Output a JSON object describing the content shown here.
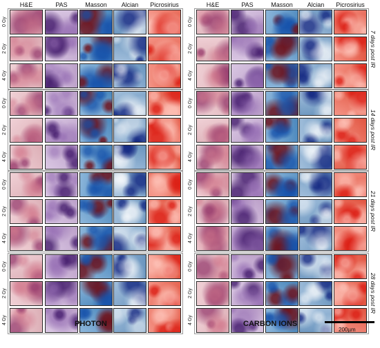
{
  "stains": [
    "H&E",
    "PAS",
    "Masson",
    "Alcian",
    "Picrosirius"
  ],
  "doses": [
    "0 Gy",
    "2 Gy",
    "4 Gy"
  ],
  "timepoints": [
    "7 days post IR",
    "14 days post IR",
    "21 days post IR",
    "28 days post IR"
  ],
  "groups": [
    "PHOTON",
    "CARBON IONS"
  ],
  "scale_bar": "200µm",
  "stain_colors": {
    "H&E": "#e8b8c0",
    "PAS": "#c6a9d4",
    "Masson": "#4f8fc7",
    "Alcian": "#6f9cc8",
    "Picrosirius": "#ee5a45"
  }
}
